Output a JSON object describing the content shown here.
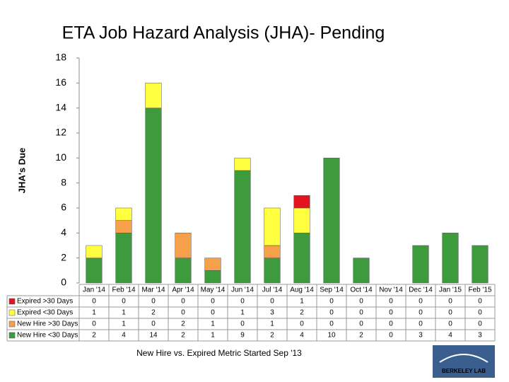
{
  "chart_data": {
    "type": "stacked-bar",
    "title": "ETA Job Hazard Analysis (JHA)- Pending",
    "y_label": "JHA's Due",
    "note": "New Hire vs. Expired Metric Started Sep '13",
    "logo": "BERKELEY LAB",
    "categories": [
      "Jan '14",
      "Feb '14",
      "Mar '14",
      "Apr '14",
      "May '14",
      "Jun '14",
      "Jul '14",
      "Aug '14",
      "Sep '14",
      "Oct '14",
      "Nov '14",
      "Dec '14",
      "Jan '15",
      "Feb '15"
    ],
    "series": [
      {
        "name": "Expired >30 Days",
        "color": "#e3141e",
        "values": [
          0,
          0,
          0,
          0,
          0,
          0,
          0,
          1,
          0,
          0,
          0,
          0,
          0,
          0
        ]
      },
      {
        "name": "Expired <30 Days",
        "color": "#ffff40",
        "values": [
          1,
          1,
          2,
          0,
          0,
          1,
          3,
          2,
          0,
          0,
          0,
          0,
          0,
          0
        ]
      },
      {
        "name": "New Hire >30 Days",
        "color": "#f6a04c",
        "values": [
          0,
          1,
          0,
          2,
          1,
          0,
          1,
          0,
          0,
          0,
          0,
          0,
          0,
          0
        ]
      },
      {
        "name": "New Hire <30 Days",
        "color": "#3d9b3d",
        "values": [
          2,
          4,
          14,
          2,
          1,
          9,
          2,
          4,
          10,
          2,
          0,
          3,
          4,
          3
        ]
      }
    ],
    "ylim": [
      0,
      18
    ],
    "yticks": [
      0,
      2,
      4,
      6,
      8,
      10,
      12,
      14,
      16,
      18
    ],
    "grid": false
  }
}
